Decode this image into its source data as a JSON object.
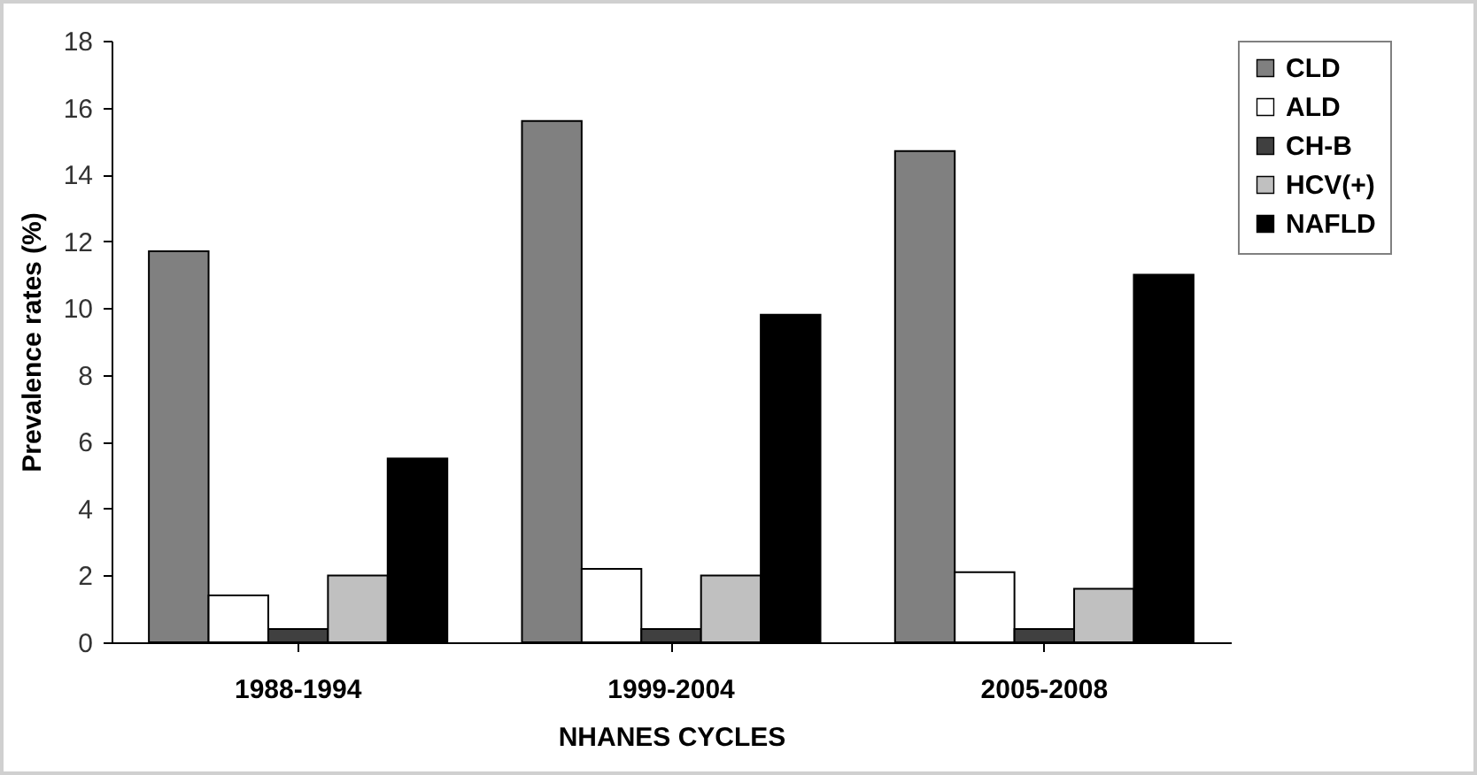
{
  "chart_data": {
    "type": "bar",
    "xlabel": "NHANES CYCLES",
    "ylabel": "Prevalence rates (%)",
    "categories": [
      "1988-1994",
      "1999-2004",
      "2005-2008"
    ],
    "series": [
      {
        "name": "CLD",
        "color": "#808080",
        "values": [
          11.7,
          15.6,
          14.7
        ]
      },
      {
        "name": "ALD",
        "color": "#ffffff",
        "values": [
          1.4,
          2.2,
          2.1
        ]
      },
      {
        "name": "CH-B",
        "color": "#404040",
        "values": [
          0.4,
          0.4,
          0.4
        ]
      },
      {
        "name": "HCV(+)",
        "color": "#c0c0c0",
        "values": [
          2.0,
          2.0,
          1.6
        ]
      },
      {
        "name": "NAFLD",
        "color": "#000000",
        "values": [
          5.5,
          9.8,
          11.0
        ]
      }
    ],
    "ylim": [
      0,
      18
    ],
    "yticks": [
      0,
      2,
      4,
      6,
      8,
      10,
      12,
      14,
      16,
      18
    ],
    "legend": "right"
  }
}
